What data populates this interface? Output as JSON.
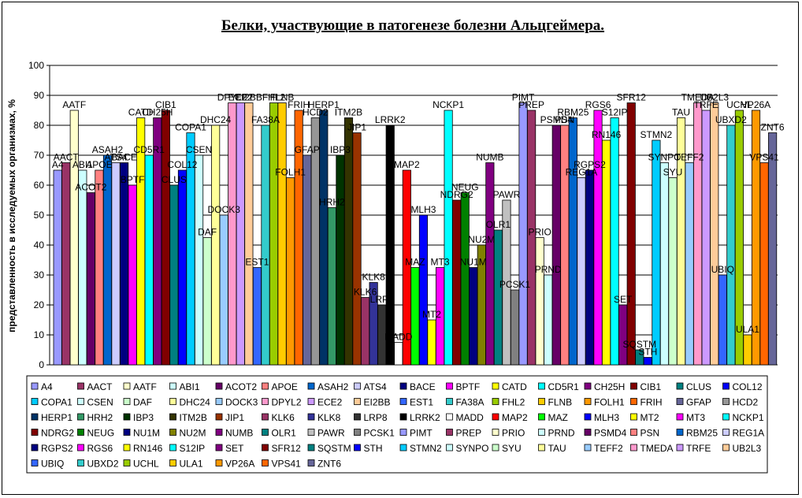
{
  "chart_data": {
    "type": "bar",
    "title": "Белки, участвующие в патогенезе болезни Альцгеймера.",
    "xlabel": "",
    "ylabel": "представленность в исследуемых организмах, %",
    "ylim": [
      0,
      100
    ],
    "yticks": [
      0,
      10,
      20,
      30,
      40,
      50,
      60,
      70,
      80,
      90,
      100
    ],
    "grid": true,
    "legend_position": "bottom",
    "series": [
      {
        "name": "A4",
        "value": 65,
        "color": "#9999ff"
      },
      {
        "name": "AACT",
        "value": 67.5,
        "color": "#993366"
      },
      {
        "name": "AATF",
        "value": 85,
        "color": "#ffffcc"
      },
      {
        "name": "ABI1",
        "value": 65,
        "color": "#ccffff"
      },
      {
        "name": "ACOT2",
        "value": 57.5,
        "color": "#660066"
      },
      {
        "name": "APOE",
        "value": 65,
        "color": "#ff8080"
      },
      {
        "name": "ASAH2",
        "value": 70,
        "color": "#0066cc"
      },
      {
        "name": "ATS4",
        "value": 67.5,
        "color": "#ccccff"
      },
      {
        "name": "BACE",
        "value": 67.5,
        "color": "#000080"
      },
      {
        "name": "BPTF",
        "value": 60,
        "color": "#ff00ff"
      },
      {
        "name": "CATD",
        "value": 82.5,
        "color": "#ffff00"
      },
      {
        "name": "CD5R1",
        "value": 70,
        "color": "#00ffff"
      },
      {
        "name": "CH25H",
        "value": 82.5,
        "color": "#800080"
      },
      {
        "name": "CIB1",
        "value": 85,
        "color": "#800000"
      },
      {
        "name": "CLUS",
        "value": 60,
        "color": "#008080"
      },
      {
        "name": "COL12",
        "value": 65,
        "color": "#0000ff"
      },
      {
        "name": "COPA1",
        "value": 77.5,
        "color": "#00ccff"
      },
      {
        "name": "CSEN",
        "value": 70,
        "color": "#ccffff"
      },
      {
        "name": "DAF",
        "value": 42.5,
        "color": "#ccffcc"
      },
      {
        "name": "DHC24",
        "value": 80,
        "color": "#ffff99"
      },
      {
        "name": "DOCK3",
        "value": 50,
        "color": "#99ccff"
      },
      {
        "name": "DPYL2",
        "value": 87.5,
        "color": "#ff99cc"
      },
      {
        "name": "ECE2",
        "value": 87.5,
        "color": "#cc99ff"
      },
      {
        "name": "EI2BB",
        "value": 87.5,
        "color": "#ffcc99"
      },
      {
        "name": "EST1",
        "value": 32.5,
        "color": "#3366ff"
      },
      {
        "name": "FA38A",
        "value": 80,
        "color": "#33cccc"
      },
      {
        "name": "FHL2",
        "value": 87.5,
        "color": "#99cc00"
      },
      {
        "name": "FLNB",
        "value": 87.5,
        "color": "#ffcc00"
      },
      {
        "name": "FOLH1",
        "value": 62.5,
        "color": "#ff9900"
      },
      {
        "name": "FRIH",
        "value": 85,
        "color": "#ff6600"
      },
      {
        "name": "GFAP",
        "value": 70,
        "color": "#666699"
      },
      {
        "name": "HCD2",
        "value": 82.5,
        "color": "#969696"
      },
      {
        "name": "HERP1",
        "value": 85,
        "color": "#003366"
      },
      {
        "name": "HRH2",
        "value": 52.5,
        "color": "#339966"
      },
      {
        "name": "IBP3",
        "value": 70,
        "color": "#003300"
      },
      {
        "name": "ITM2B",
        "value": 82.5,
        "color": "#333300"
      },
      {
        "name": "JIP1",
        "value": 77.5,
        "color": "#993300"
      },
      {
        "name": "KLK6",
        "value": 22.5,
        "color": "#993366"
      },
      {
        "name": "KLK8",
        "value": 27.5,
        "color": "#333399"
      },
      {
        "name": "LRP8",
        "value": 20,
        "color": "#333333"
      },
      {
        "name": "LRRK2",
        "value": 80,
        "color": "#000000"
      },
      {
        "name": "MADD",
        "value": 7.5,
        "color": "#ffffff"
      },
      {
        "name": "MAP2",
        "value": 65,
        "color": "#ff0000"
      },
      {
        "name": "MAZ",
        "value": 32.5,
        "color": "#00ff00"
      },
      {
        "name": "MLH3",
        "value": 50,
        "color": "#0000ff"
      },
      {
        "name": "MT2",
        "value": 15,
        "color": "#ffff00"
      },
      {
        "name": "MT3",
        "value": 32.5,
        "color": "#ff00ff"
      },
      {
        "name": "NCKP1",
        "value": 85,
        "color": "#00ffff"
      },
      {
        "name": "NDRG2",
        "value": 55,
        "color": "#800000"
      },
      {
        "name": "NEUG",
        "value": 57.5,
        "color": "#008000"
      },
      {
        "name": "NU1M",
        "value": 32.5,
        "color": "#000080"
      },
      {
        "name": "NU2M",
        "value": 40,
        "color": "#808000"
      },
      {
        "name": "NUMB",
        "value": 67.5,
        "color": "#800080"
      },
      {
        "name": "OLR1",
        "value": 45,
        "color": "#008080"
      },
      {
        "name": "PAWR",
        "value": 55,
        "color": "#c0c0c0"
      },
      {
        "name": "PCSK1",
        "value": 25,
        "color": "#808080"
      },
      {
        "name": "PIMT",
        "value": 87.5,
        "color": "#9999ff"
      },
      {
        "name": "PREP",
        "value": 85,
        "color": "#993366"
      },
      {
        "name": "PRIO",
        "value": 42.5,
        "color": "#ffffcc"
      },
      {
        "name": "PRND",
        "value": 30,
        "color": "#ccffff"
      },
      {
        "name": "PSMD4",
        "value": 80,
        "color": "#660066"
      },
      {
        "name": "PSN",
        "value": 80,
        "color": "#ff8080"
      },
      {
        "name": "RBM25",
        "value": 82.5,
        "color": "#0066cc"
      },
      {
        "name": "REG1A",
        "value": 62.5,
        "color": "#ccccff"
      },
      {
        "name": "RGPS2",
        "value": 65,
        "color": "#000080"
      },
      {
        "name": "RGS6",
        "value": 85,
        "color": "#ff00ff"
      },
      {
        "name": "RN146",
        "value": 75,
        "color": "#ffff00"
      },
      {
        "name": "S12IP",
        "value": 82.5,
        "color": "#00ffff"
      },
      {
        "name": "SET",
        "value": 20,
        "color": "#800080"
      },
      {
        "name": "SFR12",
        "value": 87.5,
        "color": "#800000"
      },
      {
        "name": "SQSTM",
        "value": 5,
        "color": "#008080"
      },
      {
        "name": "STH",
        "value": 2.5,
        "color": "#0000ff"
      },
      {
        "name": "STMN2",
        "value": 75,
        "color": "#00ccff"
      },
      {
        "name": "SYNPO",
        "value": 67.5,
        "color": "#ccffff"
      },
      {
        "name": "SYU",
        "value": 62.5,
        "color": "#ccffcc"
      },
      {
        "name": "TAU",
        "value": 82.5,
        "color": "#ffff99"
      },
      {
        "name": "TEFF2",
        "value": 67.5,
        "color": "#99ccff"
      },
      {
        "name": "TMEDA",
        "value": 87.5,
        "color": "#ff99cc"
      },
      {
        "name": "TRFE",
        "value": 85,
        "color": "#cc99ff"
      },
      {
        "name": "UB2L3",
        "value": 87.5,
        "color": "#ffcc99"
      },
      {
        "name": "UBIQ",
        "value": 30,
        "color": "#3366ff"
      },
      {
        "name": "UBXD2",
        "value": 80,
        "color": "#33cccc"
      },
      {
        "name": "UCHL",
        "value": 85,
        "color": "#99cc00"
      },
      {
        "name": "ULA1",
        "value": 10,
        "color": "#ffcc00"
      },
      {
        "name": "VP26A",
        "value": 85,
        "color": "#ff9900"
      },
      {
        "name": "VPS41",
        "value": 67.5,
        "color": "#ff6600"
      },
      {
        "name": "ZNT6",
        "value": 77.5,
        "color": "#666699"
      }
    ]
  }
}
